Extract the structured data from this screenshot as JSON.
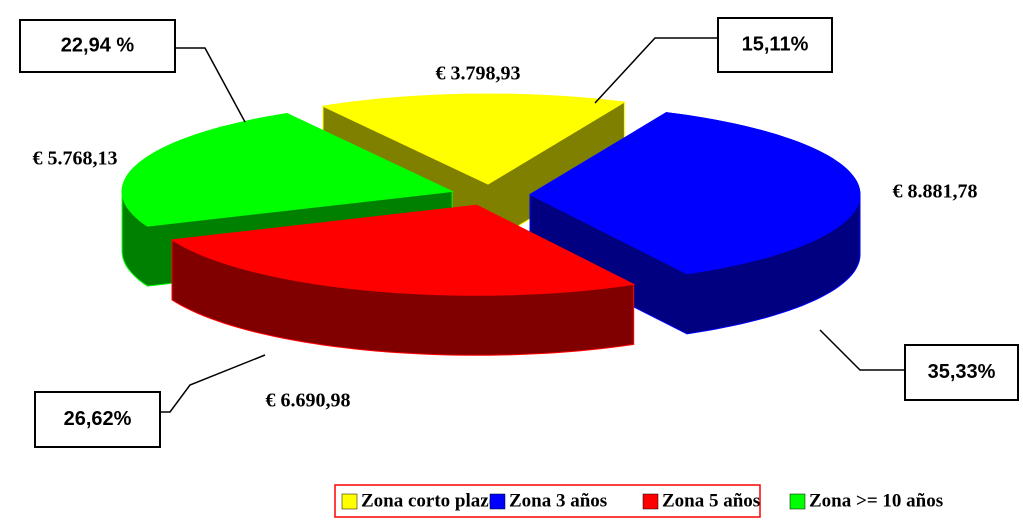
{
  "chart_data": {
    "type": "pie3d",
    "categories": [
      "Zona corto plazo",
      "Zona 3 años",
      "Zona 5 años",
      "Zona >= 10 años"
    ],
    "values": [
      3798.93,
      8881.78,
      6690.98,
      5768.13
    ],
    "value_labels": [
      "€ 3.798,93",
      "€ 8.881,78",
      "€ 6.690,98",
      "€ 5.768,13"
    ],
    "percentages": [
      15.11,
      35.33,
      26.62,
      22.94
    ],
    "percentage_labels": [
      "15,11%",
      "35,33%",
      "26,62%",
      "22,94 %"
    ],
    "colors": [
      "#ffff00",
      "#0000ff",
      "#ff0000",
      "#00ff00"
    ],
    "side_colors": [
      "#808000",
      "#000080",
      "#800000",
      "#008000"
    ],
    "legend": "bottom"
  }
}
